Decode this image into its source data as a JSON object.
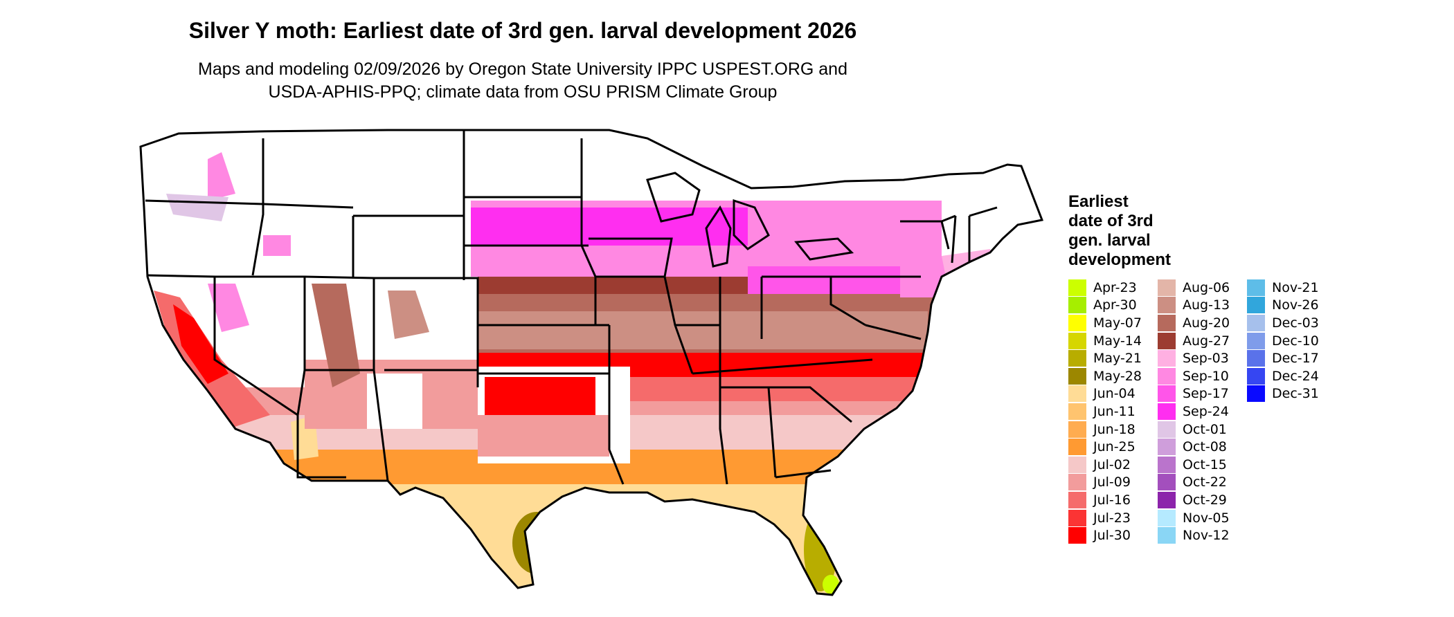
{
  "title": "Silver Y moth: Earliest date of 3rd gen. larval development 2026",
  "subtitle_line1": "Maps and modeling 02/09/2026 by Oregon State University IPPC USPEST.ORG and",
  "subtitle_line2": "USDA-APHIS-PPQ; climate data from OSU PRISM Climate Group",
  "legend": {
    "title_lines": [
      "Earliest",
      "date of 3rd",
      "gen. larval",
      "development"
    ],
    "columns": [
      [
        {
          "label": "Apr-23",
          "color": "#ccff00"
        },
        {
          "label": "Apr-30",
          "color": "#a6ee00"
        },
        {
          "label": "May-07",
          "color": "#ffff00"
        },
        {
          "label": "May-14",
          "color": "#d6d600"
        },
        {
          "label": "May-21",
          "color": "#b8ad00"
        },
        {
          "label": "May-28",
          "color": "#9c8700"
        },
        {
          "label": "Jun-04",
          "color": "#ffdc96"
        },
        {
          "label": "Jun-11",
          "color": "#ffc46f"
        },
        {
          "label": "Jun-18",
          "color": "#ffac50"
        },
        {
          "label": "Jun-25",
          "color": "#ff9a32"
        },
        {
          "label": "Jul-02",
          "color": "#f5c8c8"
        },
        {
          "label": "Jul-09",
          "color": "#f29c9c"
        },
        {
          "label": "Jul-16",
          "color": "#f56b6b"
        },
        {
          "label": "Jul-23",
          "color": "#fb3434"
        },
        {
          "label": "Jul-30",
          "color": "#ff0000"
        }
      ],
      [
        {
          "label": "Aug-06",
          "color": "#e3b5a8"
        },
        {
          "label": "Aug-13",
          "color": "#cc8f83"
        },
        {
          "label": "Aug-20",
          "color": "#b66a5d"
        },
        {
          "label": "Aug-27",
          "color": "#9c3c31"
        },
        {
          "label": "Sep-03",
          "color": "#ffb0e2"
        },
        {
          "label": "Sep-10",
          "color": "#ff88e2"
        },
        {
          "label": "Sep-17",
          "color": "#ff55e9"
        },
        {
          "label": "Sep-24",
          "color": "#ff2ef0"
        },
        {
          "label": "Oct-01",
          "color": "#e0c6e6"
        },
        {
          "label": "Oct-08",
          "color": "#cf9edb"
        },
        {
          "label": "Oct-15",
          "color": "#ba74cc"
        },
        {
          "label": "Oct-22",
          "color": "#a34fbd"
        },
        {
          "label": "Oct-29",
          "color": "#8c24ab"
        },
        {
          "label": "Nov-05",
          "color": "#b5eaff"
        },
        {
          "label": "Nov-12",
          "color": "#8ad6f5"
        }
      ],
      [
        {
          "label": "Nov-21",
          "color": "#5ebde8"
        },
        {
          "label": "Nov-26",
          "color": "#31a6dc"
        },
        {
          "label": "Dec-03",
          "color": "#a6c0ec"
        },
        {
          "label": "Dec-10",
          "color": "#7f9cea"
        },
        {
          "label": "Dec-17",
          "color": "#5a72ea"
        },
        {
          "label": "Dec-24",
          "color": "#3646f2"
        },
        {
          "label": "Dec-31",
          "color": "#0a0aff"
        }
      ]
    ]
  }
}
